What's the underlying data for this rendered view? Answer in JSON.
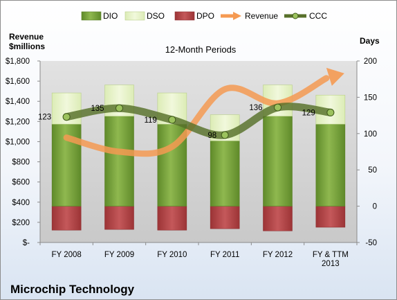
{
  "chart_data": {
    "type": "bar",
    "title": "12-Month Periods",
    "subtitle": "Microchip Technology",
    "categories": [
      "FY 2008",
      "FY 2009",
      "FY 2010",
      "FY 2011",
      "FY 2012",
      "FY & TTM|2013"
    ],
    "y_left": {
      "label": "Revenue|$millions",
      "min": 0,
      "max": 1800,
      "step": 200,
      "ticks": [
        "$-",
        "$200",
        "$400",
        "$600",
        "$800",
        "$1,000",
        "$1,200",
        "$1,400",
        "$1,600",
        "$1,800"
      ]
    },
    "y_right": {
      "label": "Days",
      "min": -50,
      "max": 200,
      "step": 50,
      "ticks": [
        "-50",
        "0",
        "50",
        "100",
        "150",
        "200"
      ]
    },
    "series": [
      {
        "name": "DIO",
        "type": "stacked-bar",
        "axis": "right",
        "color": "#77a03a",
        "values": [
          113,
          124,
          113,
          90,
          124,
          113
        ]
      },
      {
        "name": "DSO",
        "type": "stacked-bar",
        "axis": "right",
        "color": "#e4f0c4",
        "values": [
          43,
          43,
          43,
          36,
          43,
          40
        ]
      },
      {
        "name": "DPO",
        "type": "stacked-bar",
        "axis": "right",
        "color": "#b8474a",
        "values": [
          -33,
          -32,
          -33,
          -31,
          -34,
          -29
        ]
      },
      {
        "name": "Revenue",
        "type": "line",
        "axis": "left",
        "color": "#f59a52",
        "values": [
          1040,
          900,
          950,
          1520,
          1380,
          1650
        ]
      },
      {
        "name": "CCC",
        "type": "line",
        "axis": "right",
        "color": "#57702a",
        "values": [
          123,
          135,
          119,
          98,
          136,
          129
        ]
      }
    ],
    "data_labels": [
      "123",
      "135",
      "119",
      "98",
      "136",
      "129"
    ],
    "legend": "top",
    "grid": false
  },
  "colors": {
    "dio": "#77a03a",
    "dso": "#e4f0c4",
    "dpo": "#b8474a",
    "revenue": "#f59a52",
    "ccc": "#57702a",
    "plot_bg": "#d2d2d2"
  }
}
